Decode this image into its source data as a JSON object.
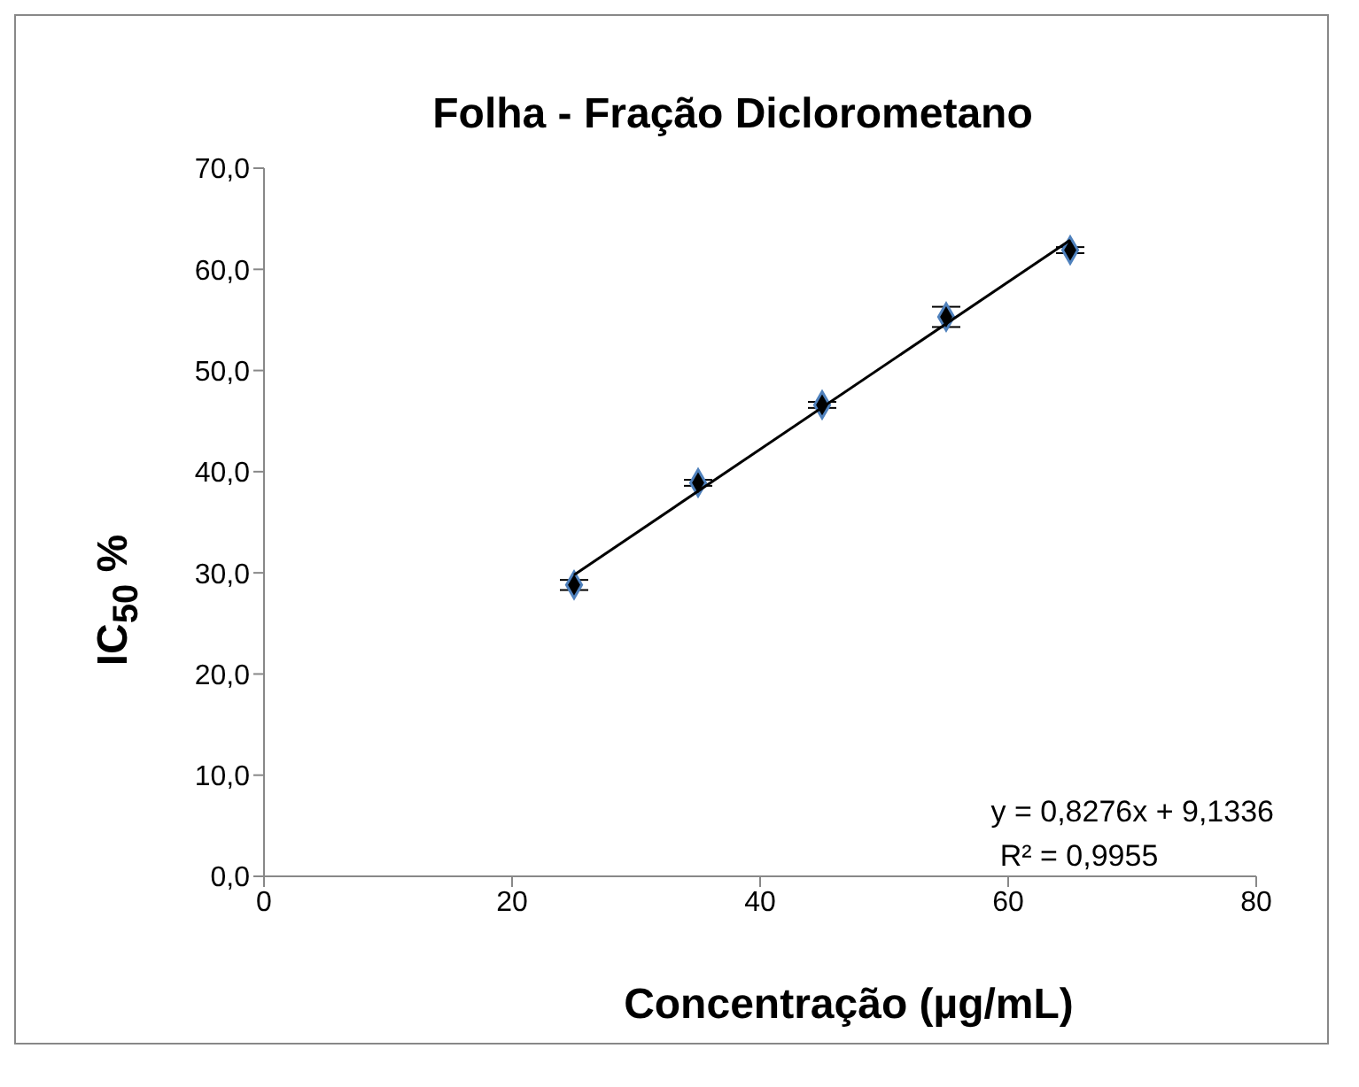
{
  "chart_data": {
    "type": "scatter",
    "title": "Folha - Fração Diclorometano",
    "xlabel": "Concentração (µg/mL)",
    "ylabel": "IC$_{50}$ %",
    "annotations": [
      "y = 0,8276x + 9,1336",
      "R² = 0,9955"
    ],
    "series": [
      {
        "color": "#000000",
        "marker": "diamond",
        "x": [
          25,
          35,
          45,
          55,
          65
        ],
        "values": [
          28.8,
          38.9,
          46.6,
          55.3,
          61.9
        ],
        "errors": [
          0.5,
          0.3,
          0.3,
          1.0,
          0.3
        ]
      },
      {
        "type": "line",
        "marker": "none",
        "color": "#000000",
        "x": [
          25,
          65
        ],
        "values": [
          29.8,
          62.9
        ]
      }
    ],
    "grid": false,
    "xlim": [
      0,
      80
    ],
    "xticks": [
      0,
      20,
      40,
      60,
      80
    ],
    "ylim": [
      0,
      70
    ],
    "yticks": [
      {
        "value": 0,
        "label": "0,0"
      },
      {
        "value": 10,
        "label": "10,0"
      },
      {
        "value": 20,
        "label": "20,0"
      },
      {
        "value": 30,
        "label": "30,0"
      },
      {
        "value": 40,
        "label": "40,0"
      },
      {
        "value": 50,
        "label": "50,0"
      },
      {
        "value": 60,
        "label": "60,0"
      },
      {
        "value": 70,
        "label": "70,0"
      }
    ]
  }
}
